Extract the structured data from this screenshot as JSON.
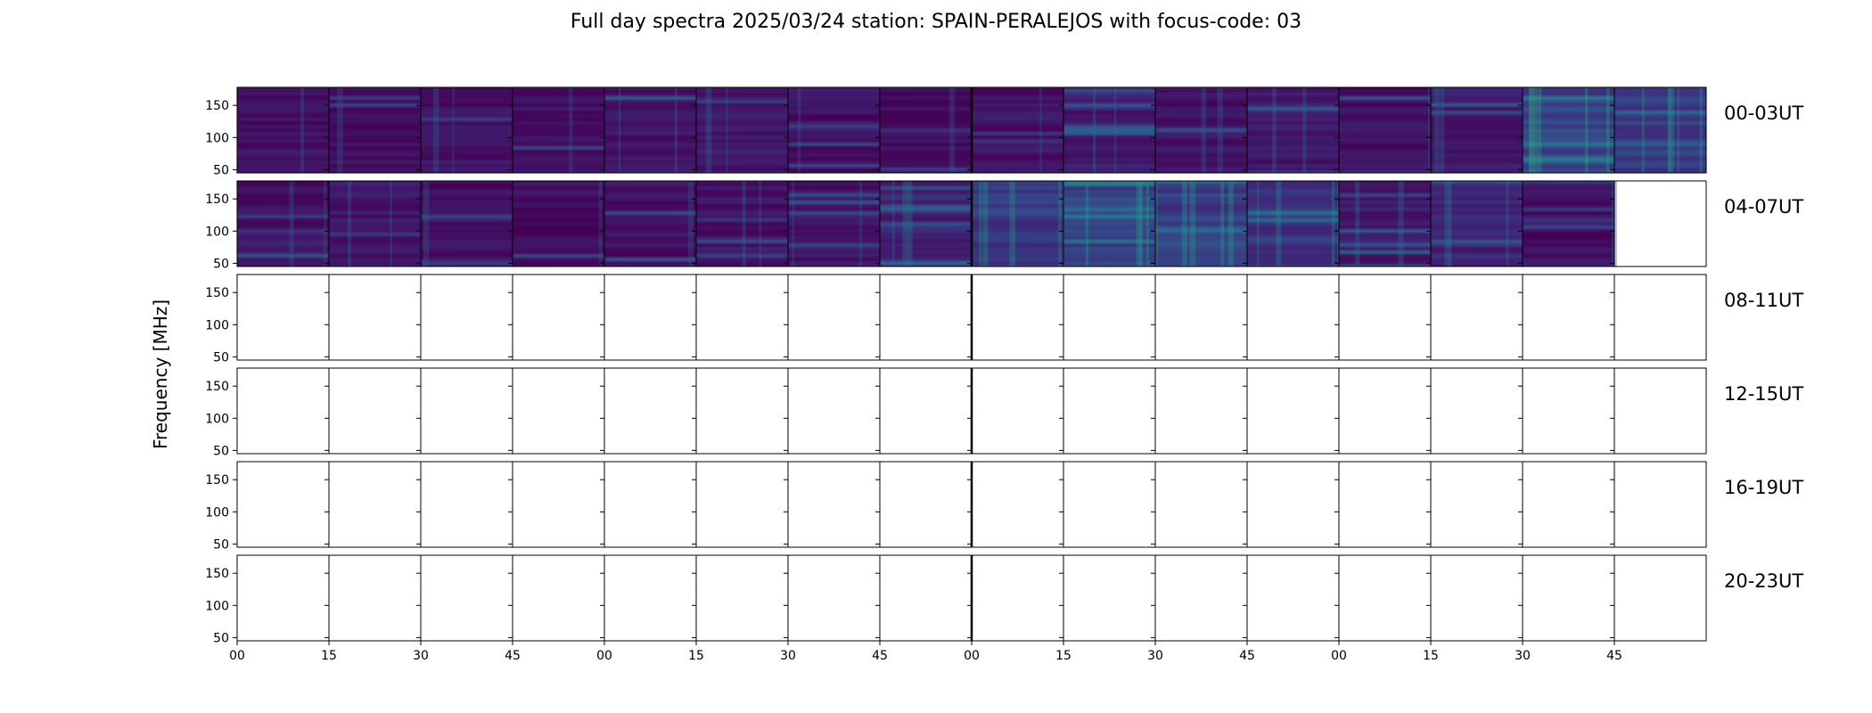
{
  "chart_data": {
    "type": "heatmap",
    "title": "Full day spectra 2025/03/24 station: SPAIN-PERALEJOS with focus-code: 03",
    "ylabel": "Frequency [MHz]",
    "xlabel": "",
    "yticks": [
      50,
      100,
      150
    ],
    "ylim": [
      45,
      178
    ],
    "xtick_labels": [
      "00",
      "15",
      "30",
      "45",
      "00",
      "15",
      "30",
      "45",
      "00",
      "15",
      "30",
      "45",
      "00",
      "15",
      "30",
      "45"
    ],
    "panels_per_row": 16,
    "minutes_per_panel": 15,
    "colormap": "viridis",
    "rows": [
      {
        "label": "00-03UT",
        "panels_with_data": 16,
        "panel_intensity": [
          0.12,
          0.1,
          0.15,
          0.13,
          0.17,
          0.2,
          0.12,
          0.1,
          0.13,
          0.22,
          0.15,
          0.18,
          0.12,
          0.2,
          0.55,
          0.45
        ]
      },
      {
        "label": "04-07UT",
        "panels_with_data": 15,
        "panel_intensity": [
          0.15,
          0.18,
          0.14,
          0.12,
          0.12,
          0.16,
          0.15,
          0.3,
          0.45,
          0.5,
          0.5,
          0.4,
          0.22,
          0.3,
          0.14,
          0.0
        ]
      },
      {
        "label": "08-11UT",
        "panels_with_data": 0,
        "panel_intensity": []
      },
      {
        "label": "12-15UT",
        "panels_with_data": 0,
        "panel_intensity": []
      },
      {
        "label": "16-19UT",
        "panels_with_data": 0,
        "panel_intensity": []
      },
      {
        "label": "20-23UT",
        "panels_with_data": 0,
        "panel_intensity": []
      }
    ]
  }
}
